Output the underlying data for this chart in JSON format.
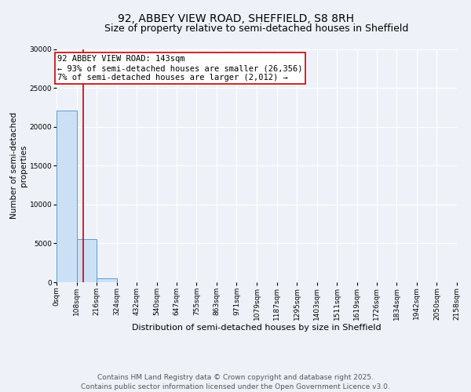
{
  "title": "92, ABBEY VIEW ROAD, SHEFFIELD, S8 8RH",
  "subtitle": "Size of property relative to semi-detached houses in Sheffield",
  "xlabel": "Distribution of semi-detached houses by size in Sheffield",
  "ylabel": "Number of semi-detached\nproperties",
  "bin_edges": [
    0,
    108,
    216,
    324,
    432,
    540,
    647,
    755,
    863,
    971,
    1079,
    1187,
    1295,
    1403,
    1511,
    1619,
    1726,
    1834,
    1942,
    2050,
    2158
  ],
  "bin_labels": [
    "0sqm",
    "108sqm",
    "216sqm",
    "324sqm",
    "432sqm",
    "540sqm",
    "647sqm",
    "755sqm",
    "863sqm",
    "971sqm",
    "1079sqm",
    "1187sqm",
    "1295sqm",
    "1403sqm",
    "1511sqm",
    "1619sqm",
    "1726sqm",
    "1834sqm",
    "1942sqm",
    "2050sqm",
    "2158sqm"
  ],
  "bar_heights": [
    22100,
    5500,
    500,
    0,
    0,
    0,
    0,
    0,
    0,
    0,
    0,
    0,
    0,
    0,
    0,
    0,
    0,
    0,
    0,
    0
  ],
  "bar_color": "#cce0f5",
  "bar_edge_color": "#5b9bd5",
  "property_size": 143,
  "vline_color": "#cc0000",
  "annotation_line1": "92 ABBEY VIEW ROAD: 143sqm",
  "annotation_line2": "← 93% of semi-detached houses are smaller (26,356)",
  "annotation_line3": "7% of semi-detached houses are larger (2,012) →",
  "annotation_box_color": "#cc0000",
  "ylim": [
    0,
    30000
  ],
  "yticks": [
    0,
    5000,
    10000,
    15000,
    20000,
    25000,
    30000
  ],
  "footer_text": "Contains HM Land Registry data © Crown copyright and database right 2025.\nContains public sector information licensed under the Open Government Licence v3.0.",
  "background_color": "#eef2f8",
  "plot_background_color": "#eef2f8",
  "grid_color": "#ffffff",
  "title_fontsize": 10,
  "subtitle_fontsize": 9,
  "annotation_fontsize": 7.5,
  "footer_fontsize": 6.5,
  "xlabel_fontsize": 8,
  "ylabel_fontsize": 7.5,
  "tick_fontsize": 6.5
}
